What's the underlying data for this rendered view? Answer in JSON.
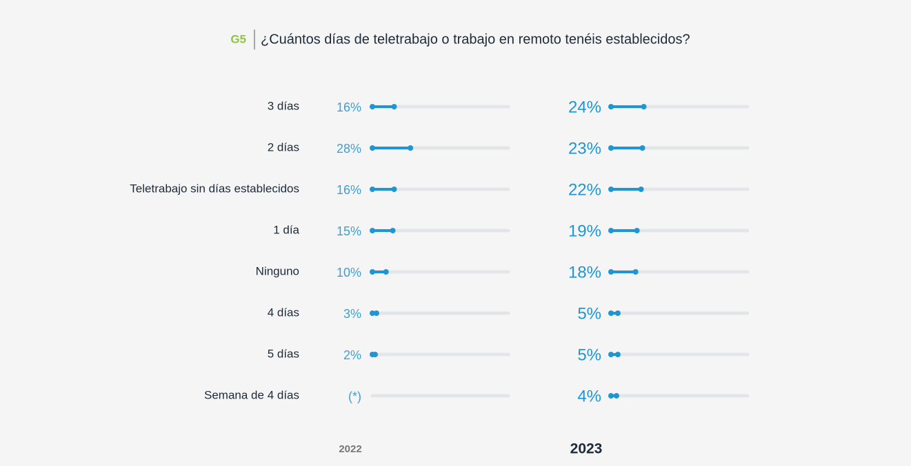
{
  "chart_data": {
    "type": "bar",
    "orientation": "horizontal",
    "label": "G5",
    "title": "¿Cuántos días de teletrabajo o trabajo en remoto tenéis establecidos?",
    "categories": [
      "3 días",
      "2 días",
      "Teletrabajo sin días establecidos",
      "1 día",
      "Ninguno",
      "4 días",
      "5 días",
      "Semana de 4 días"
    ],
    "series": [
      {
        "name": "2022",
        "color": "#1f96d3",
        "values": [
          16,
          28,
          16,
          15,
          10,
          3,
          2,
          null
        ],
        "value_labels": [
          "16%",
          "28%",
          "16%",
          "15%",
          "10%",
          "3%",
          "2%",
          "(*)"
        ]
      },
      {
        "name": "2023",
        "color": "#1f96d3",
        "values": [
          24,
          23,
          22,
          19,
          18,
          5,
          5,
          4
        ],
        "value_labels": [
          "24%",
          "23%",
          "22%",
          "19%",
          "18%",
          "5%",
          "5%",
          "4%"
        ]
      }
    ],
    "xlim": [
      0,
      100
    ]
  }
}
